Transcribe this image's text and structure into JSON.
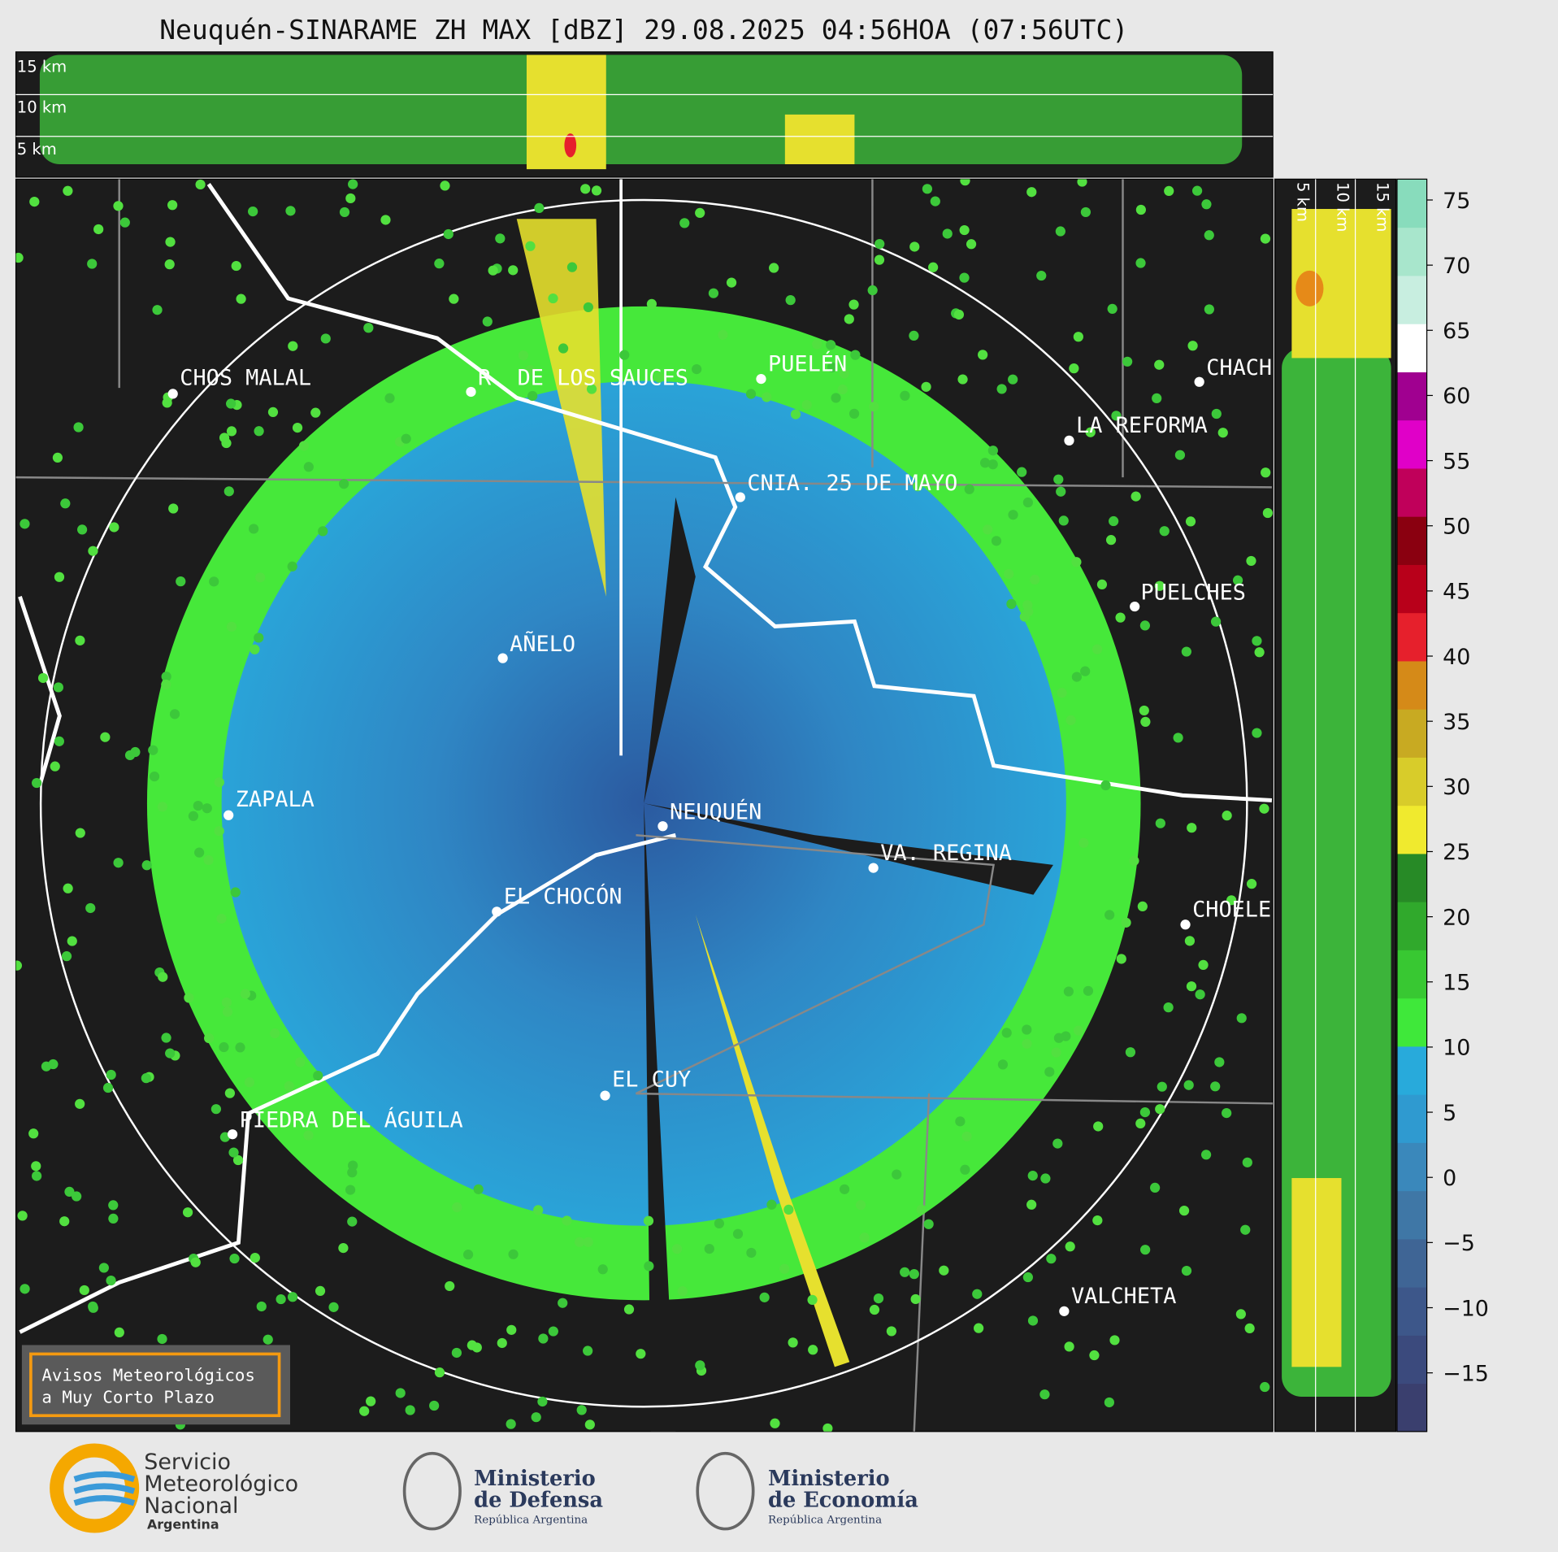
{
  "title": "Neuquén-SINARAME ZH MAX [dBZ] 29.08.2025 04:56HOA (07:56UTC)",
  "top_panel": {
    "height_labels": [
      "15 km",
      "10 km",
      "5 km"
    ]
  },
  "side_panel": {
    "height_labels": [
      "5 km",
      "10 km",
      "15 km"
    ]
  },
  "colorbar": {
    "lim": [
      -19.5,
      76.6
    ],
    "ticks": [
      75,
      70,
      65,
      60,
      55,
      50,
      45,
      40,
      35,
      30,
      25,
      20,
      15,
      10,
      5,
      0,
      {
        "value": -5,
        "label": "−5"
      },
      {
        "value": -10,
        "label": "−10"
      },
      {
        "value": -15,
        "label": "−15"
      }
    ],
    "colors": [
      "#3a3f6e",
      "#3b4a7d",
      "#3d578a",
      "#3f6595",
      "#3f77a6",
      "#3a88bb",
      "#2f9ad0",
      "#28aadb",
      "#3fe83a",
      "#38c832",
      "#30a92c",
      "#278a26",
      "#f0ea2e",
      "#d8cc2a",
      "#c8aa22",
      "#d58a18",
      "#e6202c",
      "#b8001a",
      "#8a0010",
      "#c0005a",
      "#e000c8",
      "#a00090",
      "#ffffff",
      "#c8eee0",
      "#a8e6cc",
      "#88dcbc"
    ]
  },
  "places": [
    "CHOS MALAL",
    "R. DE LOS SAUCES",
    "PUELÉN",
    "CHACH",
    "LA REFORMA",
    "CNIA. 25 DE MAYO",
    "PUELCHES",
    "AÑELO",
    "ZAPALA",
    "NEUQUÉN",
    "VA. REGINA",
    "EL CHOCÓN",
    "CHOELE",
    "EL CUY",
    "PIEDRA DEL ÁGUILA",
    "VALCHETA"
  ],
  "notice": [
    "Avisos Meteorológicos",
    "a Muy Corto Plazo"
  ],
  "logos": {
    "smn": [
      "Servicio",
      "Meteorológico",
      "Nacional",
      "Argentina"
    ],
    "defensa": [
      "Ministerio",
      "de Defensa",
      "República Argentina"
    ],
    "economia": [
      "Ministerio",
      "de Economía",
      "República Argentina"
    ]
  }
}
